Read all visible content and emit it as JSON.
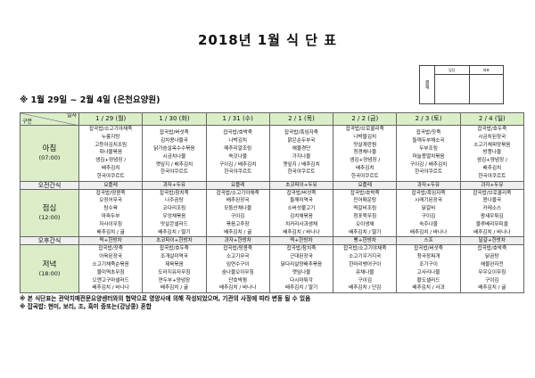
{
  "title": "2018년 1월 식 단 표",
  "approval": {
    "label": "결재",
    "col1": "담당",
    "col2": "대표"
  },
  "subtitle": "※ 1월 29일 ~ 2월 4일 (은천요양원)",
  "header": {
    "corner_top": "일자",
    "corner_bottom": "구분",
    "days": [
      "1 / 29 (월)",
      "1 / 30 (화)",
      "1 / 31 (수)",
      "2 / 1 (목)",
      "2 / 2 (금)",
      "2 / 3 (토)",
      "2 / 4 (일)"
    ]
  },
  "sections": {
    "breakfast": {
      "label": "아침",
      "time": "(07:00)",
      "days": [
        [
          "잡곡밥/소고기야채죽",
          "누룽지탕",
          "고등어김치조림",
          "취나물볶음",
          "생김+양념장 /",
          "배추김치",
          "한국야쿠르트"
        ],
        [
          "잡곡밥/버섯죽",
          "김치콩나물국",
          "닭가슴살옥수수볶음",
          "시금치나물",
          "깻잎지 / 배추김치",
          "한국야쿠르트"
        ],
        [
          "잡곡밥/호박죽",
          "나박김치",
          "메추리알조림",
          "쑥갓나물",
          "구이김 / 배추김치",
          "한국야쿠르트"
        ],
        [
          "잡곡밥/흑임자죽",
          "맑은순두부국",
          "해물경단",
          "가지나물",
          "깻잎지 / 배추김치",
          "한국야쿠르트"
        ],
        [
          "잡곡밥/브로콜리죽",
          "나박물김치",
          "맛살계란찜",
          "청경채나물",
          "생김+양념장 /",
          "배추김치",
          "한국야쿠르트"
        ],
        [
          "잡곡밥/잣죽",
          "들깨두부채소국",
          "두부조림",
          "마늘쫑멸치볶음",
          "구이김 / 배추김치",
          "한국야쿠르트"
        ],
        [
          "잡곡밥/호두죽",
          "시금치된장국",
          "소고기채피망볶음",
          "방풍나물",
          "생김+양념장 /",
          "배추김치",
          "한국야쿠르트"
        ]
      ]
    },
    "morning_snack": {
      "label": "오전간식",
      "days": [
        "요플레",
        "과자+두유",
        "요플레",
        "초코파이+두유",
        "요플레",
        "과자+두유",
        "과자+두유"
      ]
    },
    "lunch": {
      "label": "점심",
      "time": "(12:00)",
      "days": [
        [
          "잡곡밥/땅콩죽",
          "오징어무국",
          "탕수육",
          "마파두부",
          "자사이무침",
          "배추김치 / 귤"
        ],
        [
          "잡곡밥/참치죽",
          "나주곰탕",
          "코다리조림",
          "우엉채볶음",
          "맛살콘샐러드",
          "배추김치 / 딸기"
        ],
        [
          "잡곡밥/소고기야채죽",
          "배추된장국",
          "모둠산채나물",
          "구이김",
          "볶음고추장",
          "배추김치 / 귤"
        ],
        [
          "잡곡밥/버섯죽",
          "들깨미역국",
          "소버섯불고기",
          "김치채볶음",
          "치커리사과생채",
          "배추김치 / 바나나"
        ],
        [
          "잡곡밥/호박죽",
          "민어매운탕",
          "떡갈비조림",
          "청포묵무침",
          "오이생채",
          "배추김치 / 딸기"
        ],
        [
          "잡곡밥/흑임자죽",
          "시래기된장국",
          "닭갈비",
          "구이김",
          "숙주나물",
          "배추김치 / 바나나"
        ],
        [
          "잡곡밥/브로콜리죽",
          "콩나물국",
          "카레소스",
          "왕새우튀김",
          "블루베리무피클",
          "배추김치 / 바나나"
        ]
      ]
    },
    "afternoon_snack": {
      "label": "오후간식",
      "days": [
        "떡+한방차",
        "초코파이+한방차",
        "과자+한방차",
        "떡+한방차",
        "빵+한방차",
        "스프",
        "달걀+한방차"
      ]
    },
    "dinner": {
      "label": "저녁",
      "time": "(18:00)",
      "days": [
        [
          "잡곡밥/잣죽",
          "아욱된장국",
          "소고기채죽순볶음",
          "물미역초무침",
          "으깬고구마샐러드",
          "배추김치 / 바나나"
        ],
        [
          "잡곡밥/호두죽",
          "조개살미역국",
          "제육볶음",
          "도라지유자무침",
          "연두부+양념장",
          "배추김치 / 귤"
        ],
        [
          "잡곡밥/땅콩죽",
          "소고기무국",
          "임연수구이",
          "숨나물오이무침",
          "단호박찜",
          "배추김치 / 바나나"
        ],
        [
          "잡곡밥/참치죽",
          "근대된장국",
          "닭다리살양배추볶음",
          "깻잎나물",
          "다시마튀각",
          "배추김치 / 딸기"
        ],
        [
          "잡곡밥/소고기야채죽",
          "소고기우거지국",
          "한마리뱅어구이",
          "유채나물",
          "구이김",
          "배추김치 / 단감"
        ],
        [
          "잡곡밥/버섯죽",
          "청국장찌개",
          "조기구이",
          "고사리나물",
          "황도샐러드",
          "배추김치 / 사과"
        ],
        [
          "잡곡밥/호박죽",
          "닭곰탕",
          "해물완자전",
          "무우오이무침",
          "구이김",
          "배추김치 / 귤"
        ]
      ]
    }
  },
  "notes": [
    "※ 본 식단표는 관악치매전문요양센터와의 협약으로 영양사에 의해 작성되었으며, 기관의 사정에 따라 변동 될 수 있음",
    "※ 잡곡밥: 현미, 보리, 조, 흑미 중또는(강낭콩) 혼합"
  ],
  "colors": {
    "header_bg": "#dbeec8",
    "snack_bg": "#efefef"
  }
}
